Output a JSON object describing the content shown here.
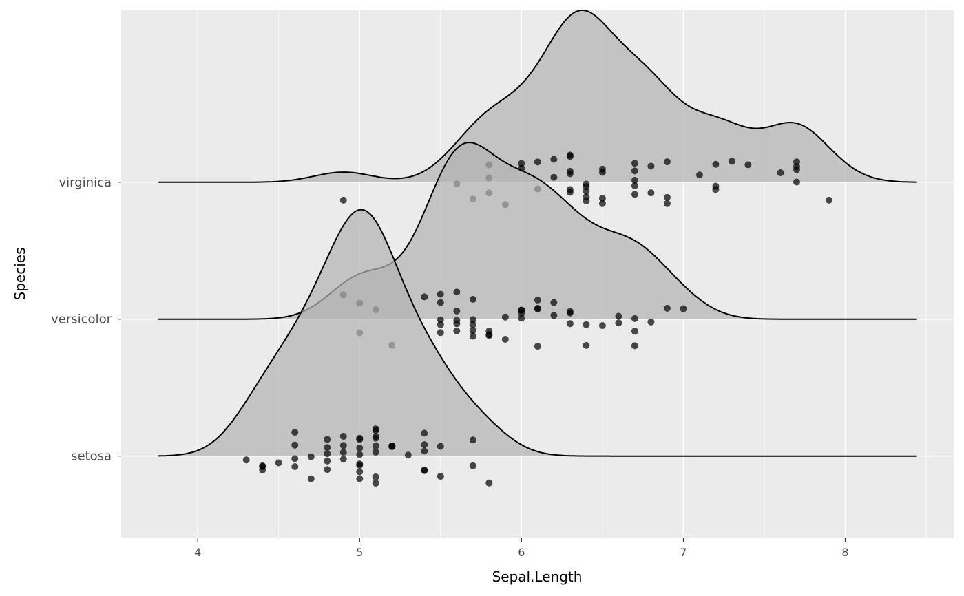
{
  "chart_data": {
    "type": "ridgeline",
    "xlabel": "Sepal.Length",
    "ylabel": "Species",
    "xlim": [
      3.527,
      8.67
    ],
    "ylim": [
      0.4,
      4.256
    ],
    "x_ticks": [
      4,
      5,
      6,
      7,
      8
    ],
    "x_tick_labels": [
      "4",
      "5",
      "6",
      "7",
      "8"
    ],
    "grid": true,
    "bandwidth": 0.181,
    "colors": {
      "panel": "#ebebeb",
      "grid": "#ffffff",
      "ridge_fill": "#b3b3b3",
      "ridge_line": "#000000",
      "point": "#000000"
    },
    "series": [
      {
        "name": "setosa",
        "values": [
          5.1,
          4.9,
          4.7,
          4.6,
          5.0,
          5.4,
          4.6,
          5.0,
          4.4,
          4.9,
          5.4,
          4.8,
          4.8,
          4.3,
          5.8,
          5.7,
          5.4,
          5.1,
          5.7,
          5.1,
          5.4,
          5.1,
          4.6,
          5.1,
          4.8,
          5.0,
          5.0,
          5.2,
          5.2,
          4.7,
          4.8,
          5.4,
          5.2,
          5.5,
          4.9,
          5.0,
          5.5,
          4.9,
          4.4,
          5.1,
          5.0,
          4.5,
          4.4,
          5.0,
          5.1,
          4.8,
          5.1,
          4.6,
          5.3,
          5.0
        ]
      },
      {
        "name": "versicolor",
        "values": [
          7.0,
          6.4,
          6.9,
          5.5,
          6.5,
          5.7,
          6.3,
          4.9,
          6.6,
          5.2,
          5.0,
          5.9,
          6.0,
          6.1,
          5.6,
          6.7,
          5.6,
          5.8,
          6.2,
          5.6,
          5.9,
          6.1,
          6.3,
          6.1,
          6.4,
          6.6,
          6.8,
          6.7,
          6.0,
          5.7,
          5.5,
          5.5,
          5.8,
          6.0,
          5.4,
          6.0,
          6.7,
          6.3,
          5.6,
          5.5,
          5.5,
          6.1,
          5.8,
          5.0,
          5.6,
          5.7,
          5.7,
          6.2,
          5.1,
          5.7
        ]
      },
      {
        "name": "virginica",
        "values": [
          6.3,
          5.8,
          7.1,
          6.3,
          6.5,
          7.6,
          4.9,
          7.3,
          6.7,
          7.2,
          6.5,
          6.4,
          6.8,
          5.7,
          5.8,
          6.4,
          6.5,
          7.7,
          7.7,
          6.0,
          6.9,
          5.6,
          7.7,
          6.3,
          6.7,
          7.2,
          6.2,
          6.1,
          6.4,
          7.2,
          7.4,
          7.9,
          6.4,
          6.3,
          6.1,
          7.7,
          6.3,
          6.4,
          6.0,
          6.9,
          6.7,
          6.9,
          5.8,
          6.8,
          6.7,
          6.7,
          6.3,
          6.5,
          6.2,
          5.9
        ]
      }
    ]
  }
}
